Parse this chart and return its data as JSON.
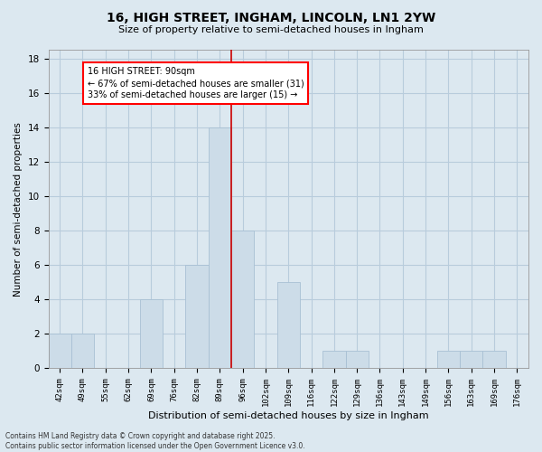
{
  "title_line1": "16, HIGH STREET, INGHAM, LINCOLN, LN1 2YW",
  "title_line2": "Size of property relative to semi-detached houses in Ingham",
  "xlabel": "Distribution of semi-detached houses by size in Ingham",
  "ylabel": "Number of semi-detached properties",
  "annotation_title": "16 HIGH STREET: 90sqm",
  "annotation_line2": "← 67% of semi-detached houses are smaller (31)",
  "annotation_line3": "33% of semi-detached houses are larger (15) →",
  "footer_line1": "Contains HM Land Registry data © Crown copyright and database right 2025.",
  "footer_line2": "Contains public sector information licensed under the Open Government Licence v3.0.",
  "bar_labels": [
    "42sqm",
    "49sqm",
    "55sqm",
    "62sqm",
    "69sqm",
    "76sqm",
    "82sqm",
    "89sqm",
    "96sqm",
    "102sqm",
    "109sqm",
    "116sqm",
    "122sqm",
    "129sqm",
    "136sqm",
    "143sqm",
    "149sqm",
    "156sqm",
    "163sqm",
    "169sqm",
    "176sqm"
  ],
  "bar_values": [
    2,
    2,
    0,
    0,
    4,
    0,
    6,
    14,
    8,
    0,
    5,
    0,
    1,
    1,
    0,
    0,
    0,
    1,
    1,
    1,
    0
  ],
  "bar_color": "#ccdce8",
  "bar_edgecolor": "#a8c0d4",
  "vline_color": "#cc0000",
  "ylim": [
    0,
    18.5
  ],
  "yticks": [
    0,
    2,
    4,
    6,
    8,
    10,
    12,
    14,
    16,
    18
  ],
  "grid_color": "#b8ccdc",
  "background_color": "#dce8f0",
  "plot_background": "#dce8f0"
}
